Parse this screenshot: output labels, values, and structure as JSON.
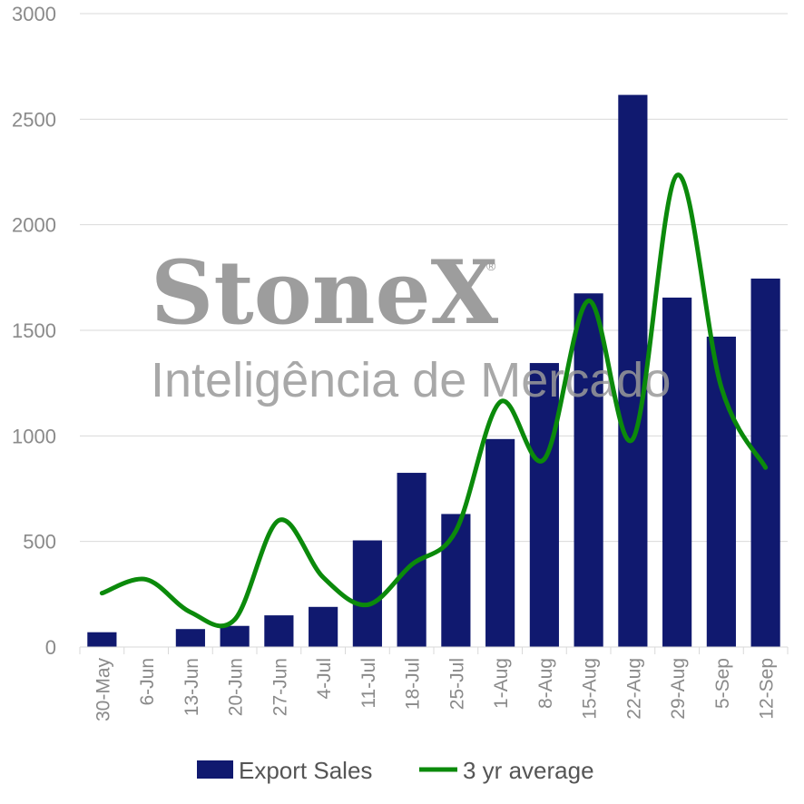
{
  "chart_data": {
    "type": "bar",
    "categories": [
      "30-May",
      "6-Jun",
      "13-Jun",
      "20-Jun",
      "27-Jun",
      "4-Jul",
      "11-Jul",
      "18-Jul",
      "25-Jul",
      "1-Aug",
      "8-Aug",
      "15-Aug",
      "22-Aug",
      "29-Aug",
      "5-Sep",
      "12-Sep"
    ],
    "series": [
      {
        "name": "Export Sales",
        "kind": "bar",
        "color": "#10196f",
        "values": [
          70,
          0,
          85,
          100,
          150,
          190,
          505,
          825,
          630,
          985,
          1345,
          1675,
          2615,
          1655,
          1470,
          1745
        ]
      },
      {
        "name": "3 yr average",
        "kind": "line",
        "color": "#0b8a0b",
        "values": [
          255,
          320,
          165,
          130,
          600,
          330,
          200,
          390,
          550,
          1160,
          890,
          1640,
          985,
          2235,
          1230,
          850
        ]
      }
    ],
    "ylim": [
      0,
      3000
    ],
    "yticks": [
      "0",
      "500",
      "1000",
      "1500",
      "2000",
      "2500",
      "3000"
    ],
    "grid": true,
    "legend_position": "bottom",
    "xlabel": "",
    "ylabel": "",
    "title": ""
  },
  "watermark": {
    "brand": "StoneX",
    "registered": "®",
    "tagline": "Inteligência de Mercado"
  }
}
